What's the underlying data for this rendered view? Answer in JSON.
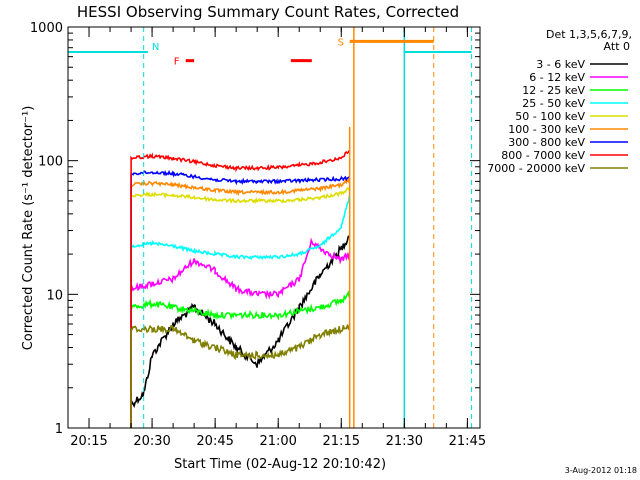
{
  "chart_data": {
    "type": "line",
    "title": "HESSI Observing Summary Count Rates, Corrected",
    "xlabel": "Start Time (02-Aug-12 20:10:42)",
    "ylabel": "Corrected Count Rate (s⁻¹ detector⁻¹)",
    "yscale": "log",
    "ylim": [
      1,
      1000
    ],
    "xlim": [
      "20:10",
      "21:48"
    ],
    "x_ticks": [
      "20:15",
      "20:30",
      "20:45",
      "21:00",
      "21:15",
      "21:30",
      "21:45"
    ],
    "y_ticks": [
      "1",
      "10",
      "100",
      "1000"
    ],
    "timestamp": "3-Aug-2012 01:18",
    "legend_header": [
      "Det 1,3,5,6,7,9,",
      "Att 0"
    ],
    "legend_position": "right",
    "series": [
      {
        "name": "3 - 6 keV",
        "color": "#000000",
        "x": [
          "20:25",
          "20:28",
          "20:30",
          "20:35",
          "20:40",
          "20:45",
          "20:50",
          "20:55",
          "21:00",
          "21:05",
          "21:10",
          "21:15",
          "21:17"
        ],
        "values": [
          1.5,
          1.8,
          3.5,
          6,
          8,
          6,
          4,
          3,
          4.5,
          8,
          14,
          22,
          28
        ]
      },
      {
        "name": "6 - 12 keV",
        "color": "#ff00ff",
        "x": [
          "20:25",
          "20:30",
          "20:35",
          "20:40",
          "20:45",
          "20:50",
          "20:55",
          "21:00",
          "21:05",
          "21:08",
          "21:10",
          "21:15",
          "21:17"
        ],
        "values": [
          11,
          12,
          13,
          18,
          15,
          11,
          10,
          10,
          13,
          25,
          22,
          18,
          20
        ]
      },
      {
        "name": "12 - 25 keV",
        "color": "#00ff00",
        "x": [
          "20:25",
          "20:30",
          "20:35",
          "20:40",
          "20:45",
          "20:50",
          "20:55",
          "21:00",
          "21:05",
          "21:10",
          "21:15",
          "21:17"
        ],
        "values": [
          8,
          8.5,
          8,
          7.5,
          7,
          7,
          7,
          7,
          7.5,
          8,
          9,
          10
        ]
      },
      {
        "name": "25 - 50 keV",
        "color": "#00ffff",
        "x": [
          "20:25",
          "20:30",
          "20:35",
          "20:40",
          "20:45",
          "20:50",
          "20:55",
          "21:00",
          "21:05",
          "21:10",
          "21:15",
          "21:17"
        ],
        "values": [
          23,
          24,
          23,
          21,
          20,
          19,
          19,
          19,
          20,
          23,
          32,
          55
        ]
      },
      {
        "name": "50 - 100 keV",
        "color": "#dddd00",
        "x": [
          "20:25",
          "20:30",
          "20:35",
          "20:40",
          "20:45",
          "20:50",
          "20:55",
          "21:00",
          "21:05",
          "21:10",
          "21:15",
          "21:17"
        ],
        "values": [
          55,
          56,
          55,
          53,
          51,
          50,
          50,
          50,
          51,
          53,
          57,
          62
        ]
      },
      {
        "name": "100 - 300 keV",
        "color": "#ff8800",
        "x": [
          "20:25",
          "20:30",
          "20:35",
          "20:40",
          "20:45",
          "20:50",
          "20:55",
          "21:00",
          "21:05",
          "21:10",
          "21:15",
          "21:17"
        ],
        "values": [
          66,
          68,
          66,
          63,
          60,
          58,
          58,
          58,
          60,
          62,
          66,
          72
        ]
      },
      {
        "name": "300 - 800 keV",
        "color": "#0000ff",
        "x": [
          "20:25",
          "20:30",
          "20:35",
          "20:40",
          "20:45",
          "20:50",
          "20:55",
          "21:00",
          "21:05",
          "21:10",
          "21:15",
          "21:17"
        ],
        "values": [
          80,
          82,
          80,
          76,
          72,
          70,
          70,
          70,
          71,
          72,
          73,
          75
        ]
      },
      {
        "name": "800 - 7000 keV",
        "color": "#ff0000",
        "x": [
          "20:25",
          "20:30",
          "20:35",
          "20:40",
          "20:45",
          "20:50",
          "20:55",
          "21:00",
          "21:05",
          "21:10",
          "21:15",
          "21:17"
        ],
        "values": [
          105,
          108,
          104,
          98,
          92,
          88,
          88,
          89,
          92,
          97,
          105,
          120
        ]
      },
      {
        "name": "7000 - 20000 keV",
        "color": "#808000",
        "x": [
          "20:25",
          "20:30",
          "20:35",
          "20:40",
          "20:45",
          "20:50",
          "20:55",
          "21:00",
          "21:05",
          "21:10",
          "21:15",
          "21:17"
        ],
        "values": [
          5.5,
          5.5,
          5.5,
          4.5,
          4,
          3.5,
          3.5,
          3.5,
          4,
          5,
          5.5,
          6
        ]
      }
    ],
    "annotations": {
      "N": {
        "label": "N",
        "color": "#00dddd",
        "level": 650,
        "segments": [
          [
            "20:10",
            "20:29"
          ],
          [
            "21:30",
            "21:46"
          ]
        ],
        "dashed_at": [
          "20:28",
          "21:46"
        ],
        "solid_at": [
          "21:30"
        ]
      },
      "F": {
        "label": "F",
        "color": "#ff0000",
        "level": 560,
        "segments": [
          [
            "20:38",
            "20:40"
          ],
          [
            "21:03",
            "21:08"
          ]
        ]
      },
      "S": {
        "label": "S",
        "color": "#ff8800",
        "level": 780,
        "segments": [
          [
            "21:17",
            "21:37"
          ]
        ],
        "solid_at": [
          "21:18"
        ],
        "dashed_at": [
          "21:37"
        ]
      }
    },
    "flare_peak_marker": {
      "x": "21:17",
      "color": "#ff8800"
    }
  }
}
